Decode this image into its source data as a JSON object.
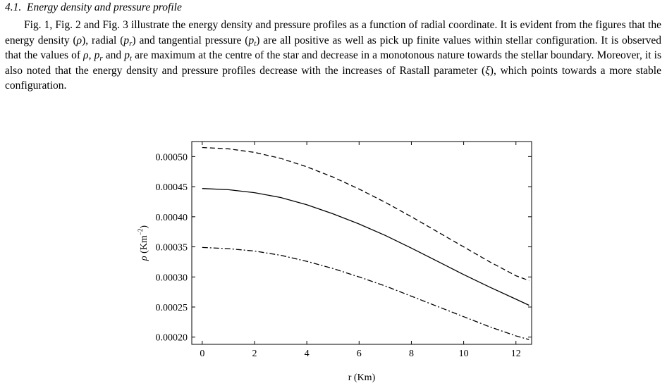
{
  "section": {
    "number": "4.1.",
    "title": "Energy density and pressure profile"
  },
  "paragraph": {
    "s1": "Fig. 1, Fig. 2 and Fig. 3 illustrate the energy density and pressure profiles as a function of radial coordinate. It is evident from the figures that the energy density (",
    "s2": "), radial (",
    "s3": ") and tangential pressure (",
    "s4": ") are all positive as well as pick up finite values within stellar configuration. It is observed that the values of ",
    "s5": ", ",
    "s6": " and ",
    "s7": " are maximum at the centre of the star and decrease in a monotonous nature towards the stellar boundary. Moreover, it is also noted that the energy density and pressure profiles decrease with the increases of Rastall parameter (",
    "s8": "), which points towards a more stable configuration.",
    "sym_rho": "ρ",
    "sym_p": "p",
    "sub_r": "r",
    "sub_t": "t",
    "sym_xi": "ξ"
  },
  "chart_data": {
    "type": "line",
    "xlabel": "r (Km)",
    "ylabel_main": "ρ (Km",
    "ylabel_sup": "−2",
    "ylabel_close": ")",
    "xlim": [
      -0.4,
      12.6
    ],
    "ylim": [
      0.000188,
      0.000525
    ],
    "x_ticks": [
      0,
      2,
      4,
      6,
      8,
      10,
      12
    ],
    "x_tick_labels": [
      "0",
      "2",
      "4",
      "6",
      "8",
      "10",
      "12"
    ],
    "y_ticks": [
      0.0002,
      0.00025,
      0.0003,
      0.00035,
      0.0004,
      0.00045,
      0.0005
    ],
    "y_tick_labels": [
      "0.00020",
      "0.00025",
      "0.00030",
      "0.00035",
      "0.00040",
      "0.00045",
      "0.00050"
    ],
    "series": [
      {
        "style": "dashed",
        "x": [
          0,
          1,
          2,
          3,
          4,
          5,
          6,
          7,
          8,
          9,
          10,
          11,
          12,
          12.5
        ],
        "y": [
          0.000515,
          0.000513,
          0.000507,
          0.000497,
          0.000483,
          0.000466,
          0.000446,
          0.000424,
          0.0004,
          0.000375,
          0.00035,
          0.000325,
          0.000302,
          0.000294
        ]
      },
      {
        "style": "solid",
        "x": [
          0,
          1,
          2,
          3,
          4,
          5,
          6,
          7,
          8,
          9,
          10,
          11,
          12,
          12.5
        ],
        "y": [
          0.000447,
          0.000445,
          0.00044,
          0.000432,
          0.00042,
          0.000405,
          0.000388,
          0.000369,
          0.000348,
          0.000326,
          0.000304,
          0.000283,
          0.000263,
          0.000253
        ]
      },
      {
        "style": "dashdot",
        "x": [
          0,
          1,
          2,
          3,
          4,
          5,
          6,
          7,
          8,
          9,
          10,
          11,
          12,
          12.5
        ],
        "y": [
          0.000349,
          0.000347,
          0.000343,
          0.000336,
          0.000326,
          0.000314,
          0.0003,
          0.000285,
          0.000268,
          0.000251,
          0.000234,
          0.000217,
          0.000202,
          0.000196
        ]
      }
    ]
  }
}
